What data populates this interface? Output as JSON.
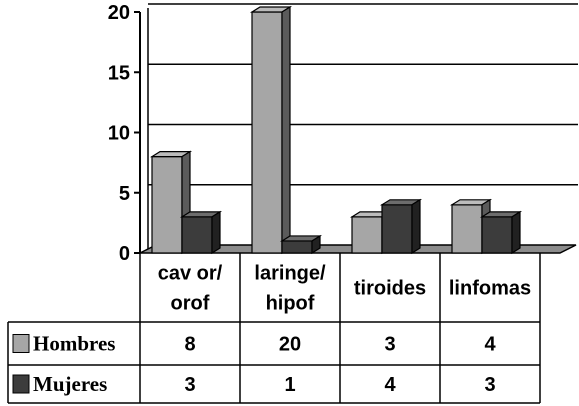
{
  "chart_data": {
    "type": "bar",
    "categories": [
      [
        "cav or/",
        "orof"
      ],
      [
        "laringe/",
        "hipof"
      ],
      [
        "tiroides"
      ],
      [
        "linfomas"
      ]
    ],
    "series": [
      {
        "name": "Hombres",
        "values": [
          8,
          20,
          3,
          4
        ],
        "color": "#a6a6a6"
      },
      {
        "name": "Mujeres",
        "values": [
          3,
          1,
          4,
          3
        ],
        "color": "#3c3c3c"
      }
    ],
    "ylim": [
      0,
      20
    ],
    "yticks": [
      0,
      5,
      10,
      15,
      20
    ],
    "grid": true,
    "legend": "data-table"
  }
}
